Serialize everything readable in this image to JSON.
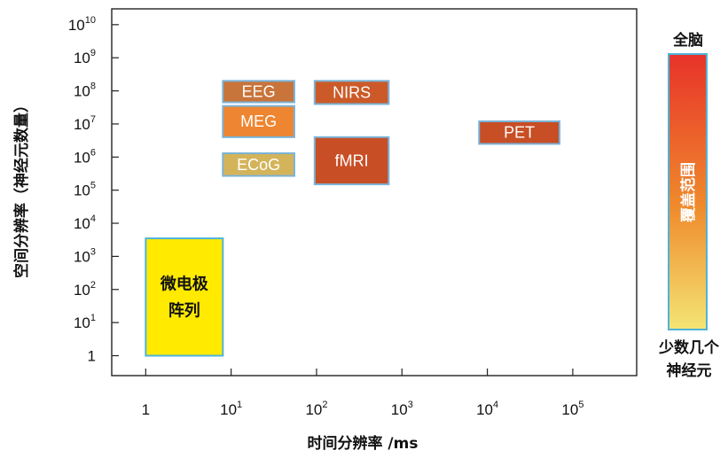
{
  "chart_data": {
    "type": "box-range",
    "xlabel": "时间分辨率 /ms",
    "ylabel": "空间分辨率（神经元数量）",
    "x_log": true,
    "y_log": true,
    "xlim": [
      0.4,
      560000
    ],
    "ylim": [
      0.25,
      30000000000
    ],
    "x_ticks": [
      {
        "base": "1",
        "exp": ""
      },
      {
        "base": "10",
        "exp": "1"
      },
      {
        "base": "10",
        "exp": "2"
      },
      {
        "base": "10",
        "exp": "3"
      },
      {
        "base": "10",
        "exp": "4"
      },
      {
        "base": "10",
        "exp": "5"
      }
    ],
    "y_ticks": [
      {
        "base": "1",
        "exp": ""
      },
      {
        "base": "10",
        "exp": "1"
      },
      {
        "base": "10",
        "exp": "2"
      },
      {
        "base": "10",
        "exp": "3"
      },
      {
        "base": "10",
        "exp": "4"
      },
      {
        "base": "10",
        "exp": "5"
      },
      {
        "base": "10",
        "exp": "6"
      },
      {
        "base": "10",
        "exp": "7"
      },
      {
        "base": "10",
        "exp": "8"
      },
      {
        "base": "10",
        "exp": "9"
      },
      {
        "base": "10",
        "exp": "10"
      }
    ],
    "boxes": [
      {
        "label": "EEG",
        "x": [
          8,
          55
        ],
        "y": [
          45000000,
          200000000
        ],
        "fill": "#c8743a",
        "stroke": "#7ab3d8",
        "text_color": "#ffffff"
      },
      {
        "label": "MEG",
        "x": [
          8,
          55
        ],
        "y": [
          4000000,
          35000000
        ],
        "fill": "#ee8530",
        "stroke": "#7ab3d8",
        "text_color": "#ffffff"
      },
      {
        "label": "ECoG",
        "x": [
          8,
          55
        ],
        "y": [
          270000,
          1300000
        ],
        "fill": "#d4b45a",
        "stroke": "#7ab3d8",
        "text_color": "#ffffff"
      },
      {
        "label": "NIRS",
        "x": [
          95,
          700
        ],
        "y": [
          40000000,
          200000000
        ],
        "fill": "#cc5a28",
        "stroke": "#7ab3d8",
        "text_color": "#ffffff"
      },
      {
        "label": "fMRI",
        "x": [
          95,
          700
        ],
        "y": [
          150000,
          4000000
        ],
        "fill": "#c84e25",
        "stroke": "#7ab3d8",
        "text_color": "#ffffff"
      },
      {
        "label": "PET",
        "x": [
          8000,
          70000
        ],
        "y": [
          2500000,
          12000000
        ],
        "fill": "#c84e25",
        "stroke": "#7ab3d8",
        "text_color": "#ffffff"
      },
      {
        "label": "微电极\n阵列",
        "x": [
          1,
          8
        ],
        "y": [
          1,
          3500
        ],
        "fill": "#ffea00",
        "stroke": "#4fb3d8",
        "text_color": "#111111",
        "cjk": true
      }
    ],
    "coverage_bar": {
      "top_label": "全脑",
      "bottom_label": "少数几个\n神经元",
      "bar_label": "覆盖范围",
      "color_top": "#e8322a",
      "color_mid": "#ef8a2c",
      "color_bottom": "#f4e574",
      "stroke": "#4fb3d8"
    }
  }
}
